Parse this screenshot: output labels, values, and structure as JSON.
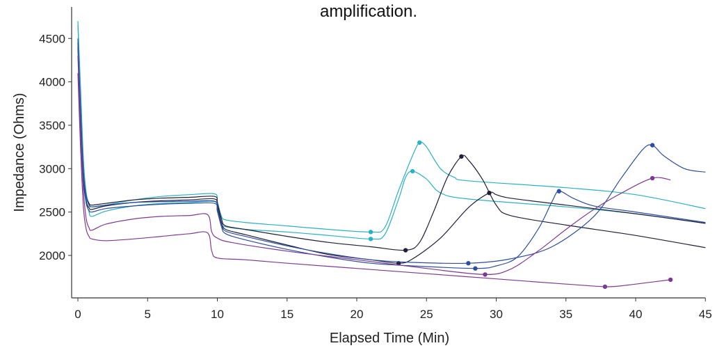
{
  "chart_data": {
    "type": "line",
    "title": "amplification.",
    "xlabel": "Elapsed Time (Min)",
    "ylabel": "Impedance (Ohms)",
    "xlim": [
      -0.3,
      45
    ],
    "ylim": [
      1550,
      4850
    ],
    "xticks": [
      "0",
      "5",
      "10",
      "15",
      "20",
      "25",
      "30",
      "35",
      "40",
      "45"
    ],
    "yticks": [
      "2000",
      "2500",
      "3000",
      "3500",
      "4000",
      "4500"
    ],
    "grid": false,
    "legend": "none",
    "series": [
      {
        "color": "#2bb0c4",
        "points": [
          [
            0,
            4700
          ],
          [
            0.2,
            3900
          ],
          [
            0.4,
            3100
          ],
          [
            0.6,
            2720
          ],
          [
            0.8,
            2600
          ],
          [
            1,
            2560
          ],
          [
            2,
            2580
          ],
          [
            4,
            2640
          ],
          [
            6,
            2680
          ],
          [
            8,
            2700
          ],
          [
            9.8,
            2710
          ],
          [
            10,
            2620
          ],
          [
            10.3,
            2450
          ],
          [
            10.6,
            2410
          ],
          [
            12,
            2380
          ],
          [
            15,
            2340
          ],
          [
            18,
            2300
          ],
          [
            21,
            2270
          ],
          [
            22,
            2320
          ],
          [
            23,
            2750
          ],
          [
            24,
            3150
          ],
          [
            24.5,
            3300
          ],
          [
            25,
            3250
          ],
          [
            26,
            3000
          ],
          [
            27,
            2900
          ],
          [
            28,
            2860
          ],
          [
            35,
            2780
          ],
          [
            40,
            2700
          ],
          [
            45,
            2540
          ]
        ],
        "markers": [
          [
            21,
            2270
          ],
          [
            24.5,
            3300
          ]
        ]
      },
      {
        "color": "#2bb0c4",
        "points": [
          [
            0,
            4650
          ],
          [
            0.2,
            3800
          ],
          [
            0.4,
            3000
          ],
          [
            0.6,
            2640
          ],
          [
            0.8,
            2500
          ],
          [
            1,
            2450
          ],
          [
            2,
            2510
          ],
          [
            4,
            2570
          ],
          [
            6,
            2600
          ],
          [
            8,
            2610
          ],
          [
            9.8,
            2620
          ],
          [
            10,
            2520
          ],
          [
            10.3,
            2360
          ],
          [
            10.6,
            2330
          ],
          [
            12,
            2300
          ],
          [
            15,
            2270
          ],
          [
            18,
            2230
          ],
          [
            21,
            2190
          ],
          [
            22,
            2240
          ],
          [
            23,
            2650
          ],
          [
            23.5,
            2900
          ],
          [
            24,
            2970
          ],
          [
            25,
            2880
          ],
          [
            26,
            2720
          ],
          [
            28,
            2650
          ],
          [
            35,
            2560
          ],
          [
            40,
            2480
          ],
          [
            45,
            2370
          ]
        ],
        "markers": [
          [
            21,
            2190
          ],
          [
            24,
            2970
          ]
        ]
      },
      {
        "color": "#1f1f35",
        "points": [
          [
            0,
            4450
          ],
          [
            0.2,
            3600
          ],
          [
            0.4,
            2950
          ],
          [
            0.6,
            2680
          ],
          [
            0.8,
            2600
          ],
          [
            1,
            2580
          ],
          [
            2,
            2600
          ],
          [
            4,
            2640
          ],
          [
            6,
            2660
          ],
          [
            8,
            2670
          ],
          [
            9.8,
            2680
          ],
          [
            10,
            2600
          ],
          [
            10.3,
            2420
          ],
          [
            10.6,
            2340
          ],
          [
            12,
            2300
          ],
          [
            15,
            2220
          ],
          [
            18,
            2150
          ],
          [
            21,
            2100
          ],
          [
            23.5,
            2060
          ],
          [
            24.5,
            2150
          ],
          [
            25.5,
            2500
          ],
          [
            26.5,
            2900
          ],
          [
            27.5,
            3140
          ],
          [
            28,
            3100
          ],
          [
            29,
            2880
          ],
          [
            30,
            2580
          ],
          [
            31,
            2460
          ],
          [
            35,
            2350
          ],
          [
            40,
            2230
          ],
          [
            45,
            2090
          ]
        ],
        "markers": [
          [
            23.5,
            2060
          ],
          [
            27.5,
            3140
          ]
        ]
      },
      {
        "color": "#1f1f35",
        "points": [
          [
            0,
            4400
          ],
          [
            0.2,
            3500
          ],
          [
            0.4,
            2850
          ],
          [
            0.6,
            2620
          ],
          [
            0.8,
            2550
          ],
          [
            1,
            2530
          ],
          [
            2,
            2570
          ],
          [
            4,
            2610
          ],
          [
            6,
            2630
          ],
          [
            8,
            2640
          ],
          [
            9.8,
            2650
          ],
          [
            10,
            2560
          ],
          [
            10.3,
            2380
          ],
          [
            10.6,
            2300
          ],
          [
            12,
            2240
          ],
          [
            15,
            2120
          ],
          [
            18,
            2010
          ],
          [
            21,
            1950
          ],
          [
            23,
            1910
          ],
          [
            24,
            1960
          ],
          [
            26,
            2200
          ],
          [
            28,
            2550
          ],
          [
            29.5,
            2720
          ],
          [
            30,
            2700
          ],
          [
            31,
            2660
          ],
          [
            35,
            2580
          ],
          [
            40,
            2480
          ],
          [
            45,
            2370
          ]
        ],
        "markers": [
          [
            23,
            1910
          ],
          [
            29.5,
            2720
          ]
        ]
      },
      {
        "color": "#2e4d9e",
        "points": [
          [
            0,
            4500
          ],
          [
            0.2,
            3650
          ],
          [
            0.4,
            2950
          ],
          [
            0.6,
            2680
          ],
          [
            0.8,
            2580
          ],
          [
            1,
            2560
          ],
          [
            2,
            2580
          ],
          [
            4,
            2610
          ],
          [
            6,
            2620
          ],
          [
            8,
            2625
          ],
          [
            9.8,
            2625
          ],
          [
            10,
            2540
          ],
          [
            10.3,
            2360
          ],
          [
            10.6,
            2280
          ],
          [
            12,
            2220
          ],
          [
            15,
            2110
          ],
          [
            18,
            2020
          ],
          [
            21,
            1950
          ],
          [
            24,
            1920
          ],
          [
            28,
            1910
          ],
          [
            31,
            1960
          ],
          [
            34,
            2100
          ],
          [
            37,
            2450
          ],
          [
            39,
            2900
          ],
          [
            40.5,
            3220
          ],
          [
            41.2,
            3270
          ],
          [
            42,
            3150
          ],
          [
            43.5,
            3000
          ],
          [
            45,
            2960
          ]
        ],
        "markers": [
          [
            28,
            1910
          ],
          [
            41.2,
            3270
          ]
        ]
      },
      {
        "color": "#2e4d9e",
        "points": [
          [
            0,
            4450
          ],
          [
            0.2,
            3550
          ],
          [
            0.4,
            2900
          ],
          [
            0.6,
            2600
          ],
          [
            0.8,
            2520
          ],
          [
            1,
            2500
          ],
          [
            2,
            2540
          ],
          [
            4,
            2570
          ],
          [
            6,
            2590
          ],
          [
            8,
            2600
          ],
          [
            9.8,
            2600
          ],
          [
            10,
            2510
          ],
          [
            10.3,
            2330
          ],
          [
            10.6,
            2250
          ],
          [
            12,
            2180
          ],
          [
            15,
            2070
          ],
          [
            18,
            1980
          ],
          [
            21,
            1910
          ],
          [
            24,
            1880
          ],
          [
            28.5,
            1850
          ],
          [
            30,
            1880
          ],
          [
            31.5,
            1980
          ],
          [
            33,
            2300
          ],
          [
            34,
            2620
          ],
          [
            34.5,
            2740
          ],
          [
            35.5,
            2660
          ],
          [
            37,
            2570
          ],
          [
            40,
            2500
          ],
          [
            45,
            2380
          ]
        ],
        "markers": [
          [
            28.5,
            1850
          ],
          [
            34.5,
            2740
          ]
        ]
      },
      {
        "color": "#7d3a92",
        "points": [
          [
            0,
            4300
          ],
          [
            0.2,
            3400
          ],
          [
            0.4,
            2750
          ],
          [
            0.6,
            2420
          ],
          [
            0.8,
            2320
          ],
          [
            1,
            2290
          ],
          [
            2,
            2360
          ],
          [
            4,
            2420
          ],
          [
            6,
            2450
          ],
          [
            8,
            2460
          ],
          [
            9.3,
            2470
          ],
          [
            9.6,
            2270
          ],
          [
            10,
            2200
          ],
          [
            11,
            2150
          ],
          [
            15,
            2050
          ],
          [
            20,
            1950
          ],
          [
            25,
            1850
          ],
          [
            29.2,
            1780
          ],
          [
            31,
            1840
          ],
          [
            33,
            2050
          ],
          [
            35,
            2300
          ],
          [
            37,
            2530
          ],
          [
            39,
            2720
          ],
          [
            41.2,
            2890
          ],
          [
            42.5,
            2870
          ]
        ],
        "markers": [
          [
            29.2,
            1780
          ],
          [
            41.2,
            2890
          ]
        ]
      },
      {
        "color": "#7d3a92",
        "points": [
          [
            0,
            4100
          ],
          [
            0.2,
            3200
          ],
          [
            0.4,
            2550
          ],
          [
            0.6,
            2300
          ],
          [
            0.8,
            2220
          ],
          [
            1,
            2190
          ],
          [
            2,
            2170
          ],
          [
            4,
            2190
          ],
          [
            6,
            2220
          ],
          [
            8,
            2250
          ],
          [
            9.3,
            2260
          ],
          [
            9.6,
            2050
          ],
          [
            10,
            1970
          ],
          [
            12,
            1950
          ],
          [
            15,
            1910
          ],
          [
            20,
            1850
          ],
          [
            25,
            1790
          ],
          [
            30,
            1730
          ],
          [
            35,
            1670
          ],
          [
            37.8,
            1640
          ],
          [
            39,
            1650
          ],
          [
            41,
            1690
          ],
          [
            42.5,
            1720
          ]
        ],
        "markers": [
          [
            37.8,
            1640
          ],
          [
            42.5,
            1720
          ]
        ]
      }
    ]
  }
}
